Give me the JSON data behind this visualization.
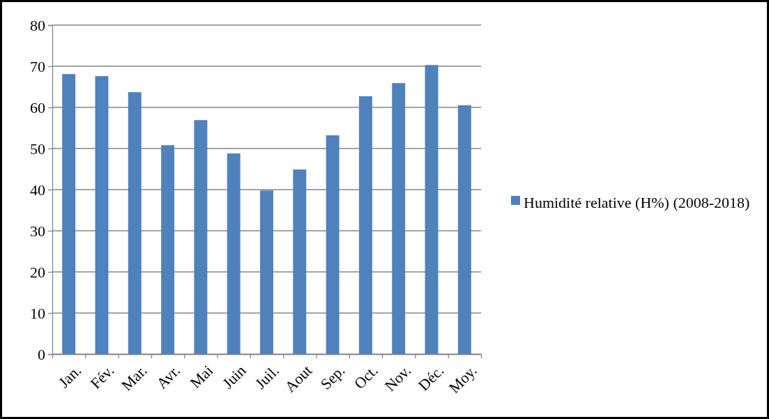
{
  "chart_data": {
    "type": "bar",
    "categories": [
      "Jan.",
      "Fév.",
      "Mar.",
      "Avr.",
      "Mai",
      "Juin",
      "Juil.",
      "Aout",
      "Sep.",
      "Oct.",
      "Nov.",
      "Déc.",
      "Moy."
    ],
    "series": [
      {
        "name": "Humidité relative (H%) (2008-2018)",
        "color": "#4f81bd",
        "values": [
          68.1,
          67.6,
          63.7,
          50.8,
          56.9,
          48.8,
          39.8,
          44.9,
          53.2,
          62.7,
          65.9,
          70.3,
          60.5
        ]
      }
    ],
    "ylim": [
      0,
      80
    ],
    "yticks": [
      0,
      10,
      20,
      30,
      40,
      50,
      60,
      70,
      80
    ],
    "grid": "y",
    "legend": "right"
  }
}
